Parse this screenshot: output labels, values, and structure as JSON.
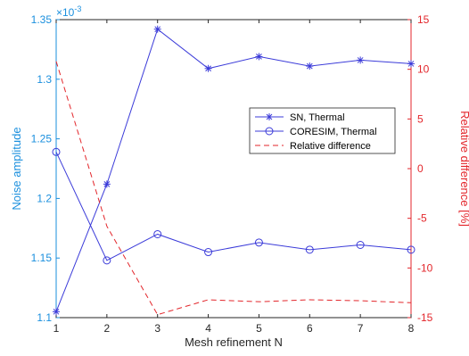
{
  "chart_data": {
    "type": "line",
    "x": [
      1,
      2,
      3,
      4,
      5,
      6,
      7,
      8
    ],
    "xlabel": "Mesh refinement N",
    "xlim": [
      1,
      8
    ],
    "xticks": [
      1,
      2,
      3,
      4,
      5,
      6,
      7,
      8
    ],
    "left_axis": {
      "label": "Noise amplitude",
      "exponent_label": "×10",
      "exponent_power": "-3",
      "ylim": [
        1.1,
        1.35
      ],
      "ticks": [
        1.1,
        1.15,
        1.2,
        1.25,
        1.3,
        1.35
      ],
      "color": "#1a8fde"
    },
    "right_axis": {
      "label": "Relative difference [%]",
      "ylim": [
        -15,
        15
      ],
      "ticks": [
        -15,
        -10,
        -5,
        0,
        5,
        10,
        15
      ],
      "color": "#e3262b"
    },
    "series": [
      {
        "name": "SN, Thermal",
        "axis": "left",
        "marker": "asterisk",
        "line": "solid",
        "color": "#3b3bd9",
        "values": [
          1.105,
          1.212,
          1.342,
          1.309,
          1.319,
          1.311,
          1.316,
          1.313
        ]
      },
      {
        "name": "CORESIM, Thermal",
        "axis": "left",
        "marker": "circle",
        "line": "solid",
        "color": "#3b3bd9",
        "values": [
          1.239,
          1.148,
          1.17,
          1.155,
          1.163,
          1.157,
          1.161,
          1.157
        ]
      },
      {
        "name": "Relative difference",
        "axis": "right",
        "marker": "none",
        "line": "dashed",
        "color": "#e3262b",
        "values": [
          10.8,
          -5.8,
          -14.7,
          -13.2,
          -13.4,
          -13.2,
          -13.3,
          -13.5
        ]
      }
    ],
    "legend": {
      "placement": "center-right"
    },
    "grid": false
  }
}
